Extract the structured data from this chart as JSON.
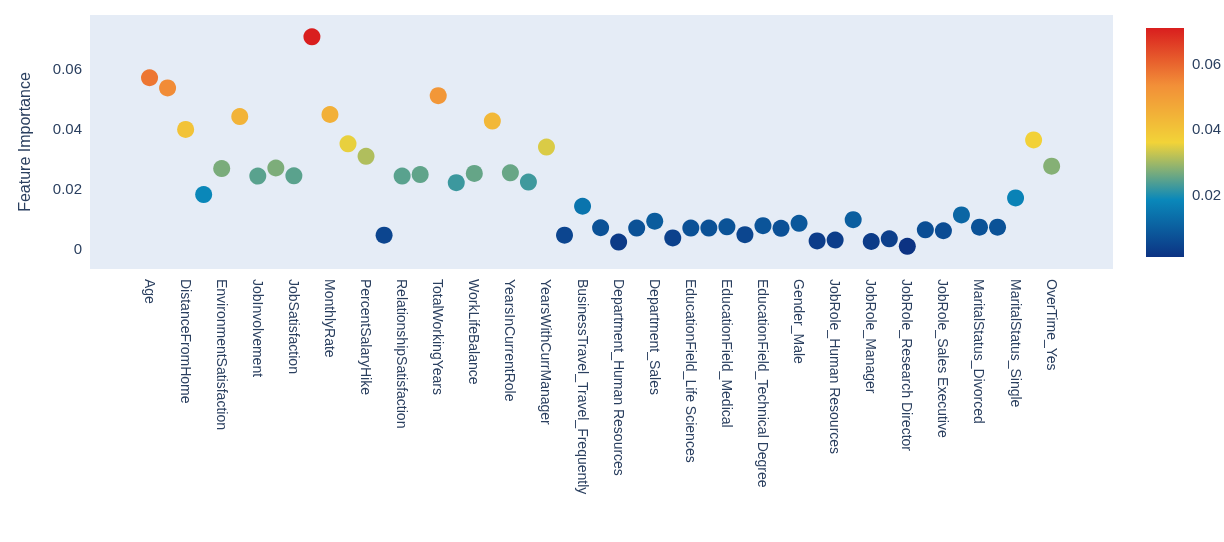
{
  "chart_data": {
    "type": "scatter",
    "ylabel": "Feature Importance",
    "categories": [
      "Age",
      null,
      "DistanceFromHome",
      null,
      "EnvironmentSatisfaction",
      null,
      "JobInvolvement",
      null,
      "JobSatisfaction",
      null,
      "MonthlyRate",
      null,
      "PercentSalaryHike",
      null,
      "RelationshipSatisfaction",
      null,
      "TotalWorkingYears",
      null,
      "WorkLifeBalance",
      null,
      "YearsInCurrentRole",
      null,
      "YearsWithCurrManager",
      null,
      "BusinessTravel_Travel_Frequently",
      null,
      "Department_Human Resources",
      null,
      "Department_Sales",
      null,
      "EducationField_Life Sciences",
      null,
      "EducationField_Medical",
      null,
      "EducationField_Technical Degree",
      null,
      "Gender_Male",
      null,
      "JobRole_Human Resources",
      null,
      "JobRole_Manager",
      null,
      "JobRole_Research Director",
      null,
      "JobRole_Sales Executive",
      null,
      "MaritalStatus_Divorced",
      null,
      "MaritalStatus_Single",
      null,
      "OverTime_Yes"
    ],
    "values": [
      0.057,
      0.0536,
      0.0397,
      0.0179,
      0.0266,
      0.044,
      0.0241,
      0.0268,
      0.0242,
      0.0707,
      0.0447,
      0.0349,
      0.0307,
      0.0043,
      0.0241,
      0.0246,
      0.051,
      0.0219,
      0.025,
      0.0425,
      0.0252,
      0.0221,
      0.0338,
      0.0043,
      0.014,
      0.0068,
      0.002,
      0.0067,
      0.009,
      0.0034,
      0.0067,
      0.0067,
      0.0071,
      0.0045,
      0.0075,
      0.0066,
      0.0083,
      0.0024,
      0.0027,
      0.0095,
      0.0022,
      0.0031,
      0.0006,
      0.0061,
      0.0058,
      0.0111,
      0.007,
      0.007,
      0.0168,
      0.0362,
      0.0274
    ],
    "cvalues": [
      0.057,
      0.0536,
      0.0397,
      0.0179,
      0.0266,
      0.044,
      0.0241,
      0.0268,
      0.0242,
      0.0707,
      0.0447,
      0.0349,
      0.0307,
      0.0043,
      0.0241,
      0.0246,
      0.051,
      0.0219,
      0.025,
      0.0425,
      0.0252,
      0.0221,
      0.0338,
      0.0043,
      0.014,
      0.0068,
      0.002,
      0.0067,
      0.009,
      0.0034,
      0.0067,
      0.0067,
      0.0071,
      0.0045,
      0.0075,
      0.0066,
      0.0083,
      0.0024,
      0.0027,
      0.0095,
      0.0022,
      0.0031,
      0.0006,
      0.0061,
      0.0058,
      0.0111,
      0.007,
      0.007,
      0.0168,
      0.0362,
      0.0274
    ],
    "clim": [
      0.0006,
      0.0707
    ],
    "cticks": [
      0.02,
      0.04,
      0.06
    ],
    "ylim": [
      -0.007,
      0.078
    ],
    "yticks": [
      0,
      0.02,
      0.04,
      0.06
    ],
    "marker": "circle",
    "grid": false
  }
}
